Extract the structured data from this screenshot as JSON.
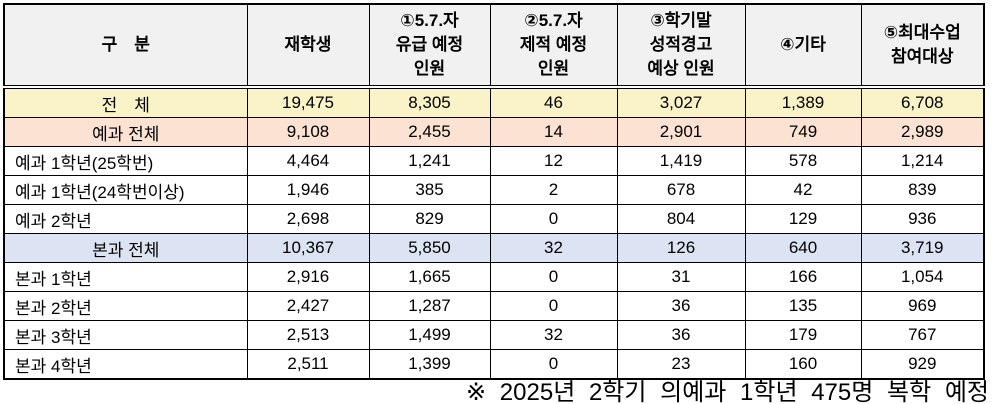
{
  "table": {
    "headers": [
      "구　분",
      "재학생",
      "①5.7.자\n유급 예정\n인원",
      "②5.7.자\n제적 예정\n인원",
      "③학기말\n성적경고\n예상 인원",
      "④기타",
      "⑤최대수업\n참여대상"
    ],
    "rows": [
      {
        "label": "전　체",
        "type": "total",
        "values": [
          "19,475",
          "8,305",
          "46",
          "3,027",
          "1,389",
          "6,708"
        ]
      },
      {
        "label": "예과 전체",
        "type": "ye-total",
        "values": [
          "9,108",
          "2,455",
          "14",
          "2,901",
          "749",
          "2,989"
        ]
      },
      {
        "label": "예과 1학년(25학번)",
        "type": "detail",
        "values": [
          "4,464",
          "1,241",
          "12",
          "1,419",
          "578",
          "1,214"
        ]
      },
      {
        "label": "예과 1학년(24학번이상)",
        "type": "detail",
        "values": [
          "1,946",
          "385",
          "2",
          "678",
          "42",
          "839"
        ]
      },
      {
        "label": "예과 2학년",
        "type": "detail",
        "values": [
          "2,698",
          "829",
          "0",
          "804",
          "129",
          "936"
        ]
      },
      {
        "label": "본과 전체",
        "type": "bon-total",
        "values": [
          "10,367",
          "5,850",
          "32",
          "126",
          "640",
          "3,719"
        ]
      },
      {
        "label": "본과 1학년",
        "type": "detail",
        "values": [
          "2,916",
          "1,665",
          "0",
          "31",
          "166",
          "1,054"
        ]
      },
      {
        "label": "본과 2학년",
        "type": "detail",
        "values": [
          "2,427",
          "1,287",
          "0",
          "36",
          "135",
          "969"
        ]
      },
      {
        "label": "본과 3학년",
        "type": "detail",
        "values": [
          "2,513",
          "1,499",
          "32",
          "36",
          "179",
          "767"
        ]
      },
      {
        "label": "본과 4학년",
        "type": "detail",
        "values": [
          "2,511",
          "1,399",
          "0",
          "23",
          "160",
          "929"
        ]
      }
    ]
  },
  "footnote": "※ 2025년 2학기 의예과 1학년 475명 복학 예정",
  "colors": {
    "header_bg": "#F1F1F1",
    "total_row_bg": "#FAF3C8",
    "ye_total_row_bg": "#FCE2D2",
    "bon_total_row_bg": "#DCE3F3",
    "border": "#000000"
  }
}
